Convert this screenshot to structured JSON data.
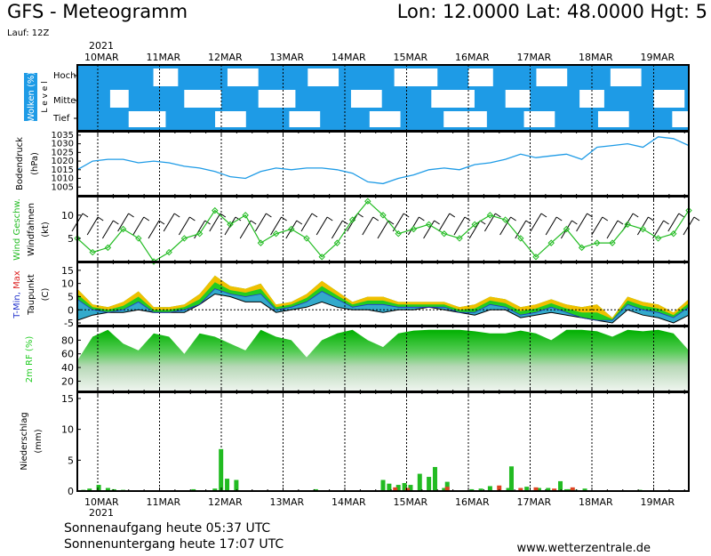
{
  "header": {
    "title": "GFS - Meteogramm",
    "coords": "Lon: 12.0000 Lat: 48.0000 Hgt: 5",
    "run": "Lauf: 12Z"
  },
  "footer": {
    "sunrise": "Sonnenaufgang heute 05:37 UTC",
    "sunset": "Sonnenuntergang heute 17:07 UTC",
    "website": "www.wetterzentrale.de"
  },
  "colors": {
    "cloud": "#1e9be6",
    "pressure": "#1e9be6",
    "wind": "#22bb22",
    "green": "#22cc22",
    "precip_green": "#22bb22",
    "precip_red": "#dd4422"
  },
  "chart_data": [
    {
      "type": "heatmap",
      "id": "clouds",
      "ylabel": "Wolken (%)",
      "level_label": "L e v e l",
      "levels": [
        "Hoch",
        "Mittel",
        "Tief"
      ],
      "dates": [
        "10MAR",
        "11MAR",
        "12MAR",
        "13MAR",
        "14MAR",
        "15MAR",
        "16MAR",
        "17MAR",
        "18MAR",
        "19MAR"
      ],
      "year": "2021",
      "x_range_days": [
        0,
        10
      ],
      "clear_cells": {
        "hoch": [
          [
            0.9,
            1.3
          ],
          [
            2.1,
            2.6
          ],
          [
            3.4,
            3.9
          ],
          [
            4.8,
            5.5
          ],
          [
            6.0,
            6.4
          ],
          [
            7.1,
            7.6
          ],
          [
            8.3,
            8.8
          ]
        ],
        "mittel": [
          [
            0.2,
            0.5
          ],
          [
            1.4,
            2.0
          ],
          [
            2.6,
            3.2
          ],
          [
            4.1,
            4.6
          ],
          [
            5.4,
            6.1
          ],
          [
            6.6,
            7.0
          ],
          [
            7.8,
            8.2
          ],
          [
            9.0,
            9.5
          ]
        ],
        "tief": [
          [
            0.5,
            1.1
          ],
          [
            1.9,
            2.4
          ],
          [
            3.1,
            3.6
          ],
          [
            4.4,
            4.9
          ],
          [
            5.6,
            6.3
          ],
          [
            6.9,
            7.4
          ],
          [
            8.1,
            8.6
          ],
          [
            9.3,
            9.8
          ]
        ]
      }
    },
    {
      "type": "line",
      "id": "pressure",
      "ylabel": "Bodendruck",
      "unit": "(hPa)",
      "ylim": [
        1000,
        1037
      ],
      "yticks": [
        1005,
        1010,
        1015,
        1020,
        1025,
        1030,
        1035
      ],
      "x": [
        0,
        0.25,
        0.5,
        0.75,
        1,
        1.25,
        1.5,
        1.75,
        2,
        2.25,
        2.5,
        2.75,
        3,
        3.25,
        3.5,
        3.75,
        4,
        4.25,
        4.5,
        4.75,
        5,
        5.25,
        5.5,
        5.75,
        6,
        6.25,
        6.5,
        6.75,
        7,
        7.25,
        7.5,
        7.75,
        8,
        8.25,
        8.5,
        8.75,
        9,
        9.25,
        9.5,
        9.75,
        10
      ],
      "values": [
        1015,
        1020,
        1021,
        1021,
        1019,
        1020,
        1019,
        1017,
        1016,
        1014,
        1011,
        1010,
        1014,
        1016,
        1015,
        1016,
        1016,
        1015,
        1013,
        1008,
        1007,
        1010,
        1012,
        1015,
        1016,
        1015,
        1018,
        1019,
        1021,
        1024,
        1022,
        1023,
        1024,
        1021,
        1028,
        1029,
        1030,
        1028,
        1034,
        1033,
        1029
      ]
    },
    {
      "type": "line",
      "id": "wind",
      "ylabel": "Wind Geschw.",
      "ylabel2": "Windfahnen",
      "unit": "(kt)",
      "ylim": [
        0,
        14
      ],
      "yticks": [
        5,
        10
      ],
      "x": [
        0,
        0.25,
        0.5,
        0.75,
        1,
        1.25,
        1.5,
        1.75,
        2,
        2.25,
        2.5,
        2.75,
        3,
        3.25,
        3.5,
        3.75,
        4,
        4.25,
        4.5,
        4.75,
        5,
        5.25,
        5.5,
        5.75,
        6,
        6.25,
        6.5,
        6.75,
        7,
        7.25,
        7.5,
        7.75,
        8,
        8.25,
        8.5,
        8.75,
        9,
        9.25,
        9.5,
        9.75,
        10
      ],
      "values": [
        5,
        2,
        3,
        7,
        5,
        0,
        2,
        5,
        6,
        11,
        8,
        10,
        4,
        6,
        7,
        5,
        1,
        4,
        9,
        13,
        10,
        6,
        7,
        8,
        6,
        5,
        8,
        10,
        9,
        5,
        1,
        4,
        7,
        3,
        4,
        4,
        8,
        7,
        5,
        6,
        11
      ]
    },
    {
      "type": "area",
      "id": "temperature",
      "ylabel": "T-Min, Max",
      "ylabel_tmin": "T-Min,",
      "ylabel_tmax": "Max",
      "ylabel2": "Taupunkt",
      "unit": "(C)",
      "ylim": [
        -6,
        18
      ],
      "yticks": [
        -5,
        0,
        5,
        10,
        15
      ],
      "x": [
        0,
        0.25,
        0.5,
        0.75,
        1,
        1.25,
        1.5,
        1.75,
        2,
        2.25,
        2.5,
        2.75,
        3,
        3.25,
        3.5,
        3.75,
        4,
        4.25,
        4.5,
        4.75,
        5,
        5.25,
        5.5,
        5.75,
        6,
        6.25,
        6.5,
        6.75,
        7,
        7.25,
        7.5,
        7.75,
        8,
        8.25,
        8.5,
        8.75,
        9,
        9.25,
        9.5,
        9.75,
        10
      ],
      "tmax": [
        8,
        2,
        1,
        3,
        7,
        1,
        1,
        2,
        6,
        13,
        9,
        8,
        10,
        2,
        3,
        6,
        11,
        7,
        3,
        5,
        5,
        3,
        3,
        3,
        3,
        1,
        2,
        5,
        4,
        1,
        2,
        4,
        2,
        1,
        2,
        -3,
        5,
        3,
        2,
        -1,
        4
      ],
      "tmin": [
        4,
        0,
        -1,
        0,
        3,
        -1,
        -1,
        0,
        2,
        8,
        6,
        5,
        6,
        0,
        1,
        3,
        7,
        4,
        1,
        2,
        2,
        1,
        1,
        1,
        1,
        -1,
        -1,
        2,
        1,
        -2,
        -1,
        1,
        -1,
        -3,
        -4,
        -4,
        2,
        0,
        -1,
        -3,
        1
      ],
      "dewpoint": [
        -4,
        -2,
        -1,
        -1,
        0,
        -1,
        -1,
        -1,
        2,
        6,
        5,
        3,
        3,
        -1,
        0,
        1,
        3,
        1,
        0,
        0,
        -1,
        0,
        0,
        1,
        0,
        -1,
        -2,
        0,
        0,
        -3,
        -2,
        -1,
        -2,
        -3,
        -4,
        -5,
        0,
        -2,
        -3,
        -5,
        -2
      ]
    },
    {
      "type": "area",
      "id": "humidity",
      "ylabel": "2m RF (%)",
      "ylim": [
        5,
        100
      ],
      "yticks": [
        20,
        40,
        60,
        80
      ],
      "x": [
        0,
        0.25,
        0.5,
        0.75,
        1,
        1.25,
        1.5,
        1.75,
        2,
        2.25,
        2.5,
        2.75,
        3,
        3.25,
        3.5,
        3.75,
        4,
        4.25,
        4.5,
        4.75,
        5,
        5.25,
        5.5,
        5.75,
        6,
        6.25,
        6.5,
        6.75,
        7,
        7.25,
        7.5,
        7.75,
        8,
        8.25,
        8.5,
        8.75,
        9,
        9.25,
        9.5,
        9.75,
        10
      ],
      "values": [
        50,
        85,
        95,
        75,
        65,
        90,
        85,
        60,
        90,
        85,
        75,
        65,
        95,
        85,
        80,
        55,
        80,
        90,
        95,
        80,
        70,
        90,
        94,
        95,
        95,
        95,
        93,
        90,
        90,
        94,
        90,
        80,
        95,
        95,
        93,
        85,
        95,
        93,
        95,
        90,
        65
      ]
    },
    {
      "type": "bar",
      "id": "precip",
      "ylabel": "Niederschlag",
      "unit": "(mm)",
      "ylim": [
        0,
        16
      ],
      "yticks": [
        0,
        5,
        10,
        15
      ],
      "series": [
        {
          "kind": "green",
          "x": [
            0.1,
            0.2,
            0.35,
            0.5,
            0.6,
            0.75,
            1.9,
            2.25,
            2.35,
            2.45,
            2.6,
            3.9,
            5.0,
            5.1,
            5.25,
            5.35,
            5.45,
            5.6,
            5.75,
            5.85,
            6.0,
            6.05,
            6.45,
            6.6,
            6.75,
            7.05,
            7.1,
            7.35,
            7.55,
            7.7,
            7.9,
            8.0,
            8.05,
            8.15,
            8.3,
            9.2
          ],
          "values": [
            0.2,
            0.4,
            1.0,
            0.5,
            0.3,
            0.2,
            0.3,
            0.4,
            6.8,
            2.0,
            1.8,
            0.3,
            1.8,
            1.2,
            1.0,
            1.3,
            1.0,
            2.8,
            2.3,
            3.9,
            0.5,
            1.5,
            0.3,
            0.4,
            0.8,
            0.5,
            4.0,
            0.7,
            0.5,
            0.5,
            1.6,
            0.3,
            0.3,
            0.2,
            0.4,
            0.2
          ]
        },
        {
          "kind": "red",
          "x": [
            1.0,
            5.2,
            5.4,
            6.05,
            6.9,
            7.25,
            7.5,
            7.8,
            8.1
          ],
          "values": [
            0.1,
            0.6,
            0.5,
            0.7,
            0.9,
            0.5,
            0.6,
            0.4,
            0.6
          ]
        }
      ]
    }
  ]
}
